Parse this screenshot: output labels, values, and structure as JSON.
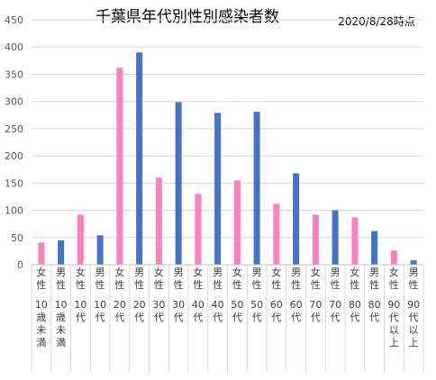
{
  "chart_data": {
    "type": "bar",
    "title": "千葉県年代別性別感染者数",
    "date_label": "2020/8/28時点",
    "ylim": [
      0,
      450
    ],
    "yticks": [
      0,
      50,
      100,
      150,
      200,
      250,
      300,
      350,
      400,
      450
    ],
    "grid": true,
    "colors": {
      "female": "#ff80c0",
      "male": "#4472c4"
    },
    "categories": [
      {
        "sex": "女性",
        "age": "10歳未満",
        "group": "female",
        "value": 41
      },
      {
        "sex": "男性",
        "age": "10歳未満",
        "group": "male",
        "value": 45
      },
      {
        "sex": "女性",
        "age": "10代",
        "group": "female",
        "value": 92
      },
      {
        "sex": "男性",
        "age": "10代",
        "group": "male",
        "value": 54
      },
      {
        "sex": "女性",
        "age": "20代",
        "group": "female",
        "value": 362
      },
      {
        "sex": "男性",
        "age": "20代",
        "group": "male",
        "value": 390
      },
      {
        "sex": "女性",
        "age": "30代",
        "group": "female",
        "value": 160
      },
      {
        "sex": "男性",
        "age": "30代",
        "group": "male",
        "value": 299
      },
      {
        "sex": "女性",
        "age": "40代",
        "group": "female",
        "value": 130
      },
      {
        "sex": "男性",
        "age": "40代",
        "group": "male",
        "value": 279
      },
      {
        "sex": "女性",
        "age": "50代",
        "group": "female",
        "value": 155
      },
      {
        "sex": "男性",
        "age": "50代",
        "group": "male",
        "value": 281
      },
      {
        "sex": "女性",
        "age": "60代",
        "group": "female",
        "value": 112
      },
      {
        "sex": "男性",
        "age": "60代",
        "group": "male",
        "value": 168
      },
      {
        "sex": "女性",
        "age": "70代",
        "group": "female",
        "value": 92
      },
      {
        "sex": "男性",
        "age": "70代",
        "group": "male",
        "value": 100
      },
      {
        "sex": "女性",
        "age": "80代",
        "group": "female",
        "value": 87
      },
      {
        "sex": "男性",
        "age": "80代",
        "group": "male",
        "value": 62
      },
      {
        "sex": "女性",
        "age": "90代以上",
        "group": "female",
        "value": 26
      },
      {
        "sex": "男性",
        "age": "90代以上",
        "group": "male",
        "value": 8
      }
    ]
  }
}
